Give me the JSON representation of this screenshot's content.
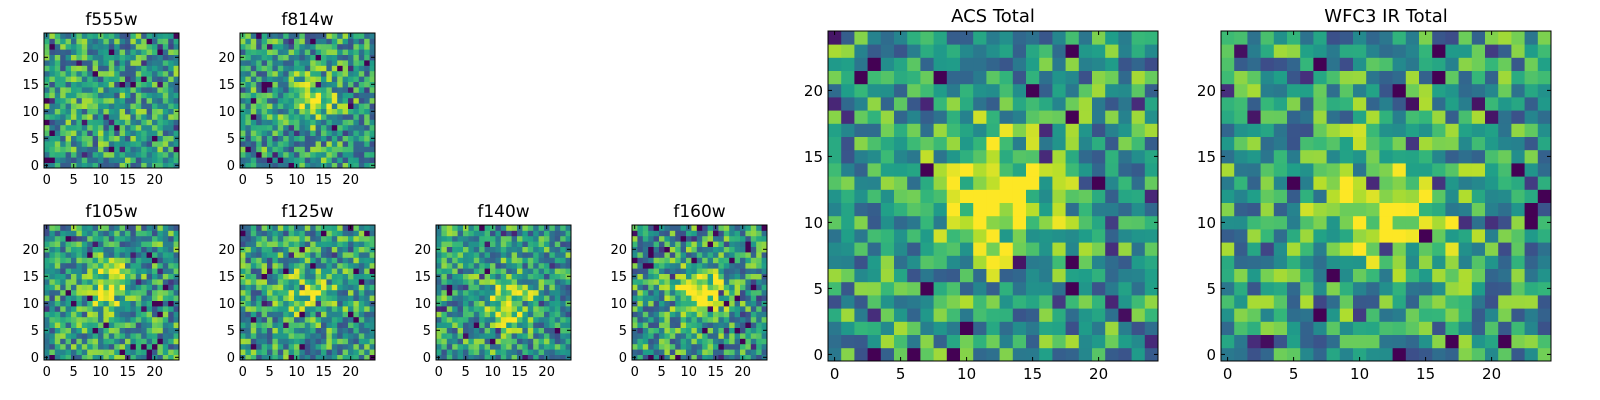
{
  "chart_data": [
    {
      "type": "heatmap",
      "title": "f555w",
      "seed": 11,
      "hot_center": [
        10,
        11
      ],
      "hot_strength": 0.05,
      "xlim": [
        0,
        24
      ],
      "ylim": [
        0,
        24
      ],
      "xticks": [
        0,
        5,
        10,
        15,
        20
      ],
      "yticks": [
        0,
        5,
        10,
        15,
        20
      ],
      "colormap": "viridis"
    },
    {
      "type": "heatmap",
      "title": "f814w",
      "seed": 23,
      "hot_center": [
        12,
        12
      ],
      "hot_strength": 0.35,
      "xlim": [
        0,
        24
      ],
      "ylim": [
        0,
        24
      ],
      "xticks": [
        0,
        5,
        10,
        15,
        20
      ],
      "yticks": [
        0,
        5,
        10,
        15,
        20
      ],
      "colormap": "viridis"
    },
    {
      "type": "heatmap",
      "title": "f105w",
      "seed": 37,
      "hot_center": [
        12,
        13
      ],
      "hot_strength": 0.3,
      "xlim": [
        0,
        24
      ],
      "ylim": [
        0,
        24
      ],
      "xticks": [
        0,
        5,
        10,
        15,
        20
      ],
      "yticks": [
        0,
        5,
        10,
        15,
        20
      ],
      "colormap": "viridis"
    },
    {
      "type": "heatmap",
      "title": "f125w",
      "seed": 41,
      "hot_center": [
        12,
        12
      ],
      "hot_strength": 0.25,
      "xlim": [
        0,
        24
      ],
      "ylim": [
        0,
        24
      ],
      "xticks": [
        0,
        5,
        10,
        15,
        20
      ],
      "yticks": [
        0,
        5,
        10,
        15,
        20
      ],
      "colormap": "viridis"
    },
    {
      "type": "heatmap",
      "title": "f140w",
      "seed": 53,
      "hot_center": [
        13,
        10
      ],
      "hot_strength": 0.35,
      "xlim": [
        0,
        24
      ],
      "ylim": [
        0,
        24
      ],
      "xticks": [
        0,
        5,
        10,
        15,
        20
      ],
      "yticks": [
        0,
        5,
        10,
        15,
        20
      ],
      "colormap": "viridis"
    },
    {
      "type": "heatmap",
      "title": "f160w",
      "seed": 67,
      "hot_center": [
        12,
        12
      ],
      "hot_strength": 0.45,
      "xlim": [
        0,
        24
      ],
      "ylim": [
        0,
        24
      ],
      "xticks": [
        0,
        5,
        10,
        15,
        20
      ],
      "yticks": [
        0,
        5,
        10,
        15,
        20
      ],
      "colormap": "viridis"
    },
    {
      "type": "heatmap",
      "title": "ACS Total",
      "seed": 79,
      "hot_center": [
        12,
        12
      ],
      "hot_strength": 0.45,
      "xlim": [
        0,
        24
      ],
      "ylim": [
        0,
        24
      ],
      "xticks": [
        0,
        5,
        10,
        15,
        20
      ],
      "yticks": [
        0,
        5,
        10,
        15,
        20
      ],
      "colormap": "viridis"
    },
    {
      "type": "heatmap",
      "title": "WFC3 IR Total",
      "seed": 97,
      "hot_center": [
        12,
        11
      ],
      "hot_strength": 0.5,
      "xlim": [
        0,
        24
      ],
      "ylim": [
        0,
        24
      ],
      "xticks": [
        0,
        5,
        10,
        15,
        20
      ],
      "yticks": [
        0,
        5,
        10,
        15,
        20
      ],
      "colormap": "viridis"
    }
  ]
}
